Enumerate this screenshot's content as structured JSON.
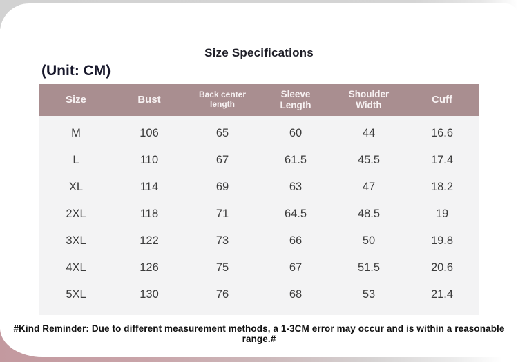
{
  "title": "Size Specifications",
  "unit_label": "(Unit: CM)",
  "note": "#Kind Reminder: Due to different measurement methods, a 1-3CM error may occur and is within a reasonable range.#",
  "colors": {
    "header_bg": "#a98e90",
    "header_text": "#f7f1f2",
    "body_bg": "#f3f3f4",
    "body_text": "#3c3c3c",
    "top_band": "#d5d5d5",
    "bottom_band_pink": "#c3999f",
    "title_text": "#1f1f28"
  },
  "table": {
    "columns": [
      {
        "label": "Size"
      },
      {
        "label": "Bust"
      },
      {
        "label": "Back center length"
      },
      {
        "label": "Sleeve\nLength"
      },
      {
        "label": "Shoulder\nWidth"
      },
      {
        "label": "Cuff"
      }
    ],
    "rows": [
      {
        "cells": [
          "M",
          "106",
          "65",
          "60",
          "44",
          "16.6"
        ]
      },
      {
        "cells": [
          "L",
          "110",
          "67",
          "61.5",
          "45.5",
          "17.4"
        ]
      },
      {
        "cells": [
          "XL",
          "114",
          "69",
          "63",
          "47",
          "18.2"
        ]
      },
      {
        "cells": [
          "2XL",
          "118",
          "71",
          "64.5",
          "48.5",
          "19"
        ]
      },
      {
        "cells": [
          "3XL",
          "122",
          "73",
          "66",
          "50",
          "19.8"
        ]
      },
      {
        "cells": [
          "4XL",
          "126",
          "75",
          "67",
          "51.5",
          "20.6"
        ]
      },
      {
        "cells": [
          "5XL",
          "130",
          "76",
          "68",
          "53",
          "21.4"
        ]
      }
    ]
  }
}
